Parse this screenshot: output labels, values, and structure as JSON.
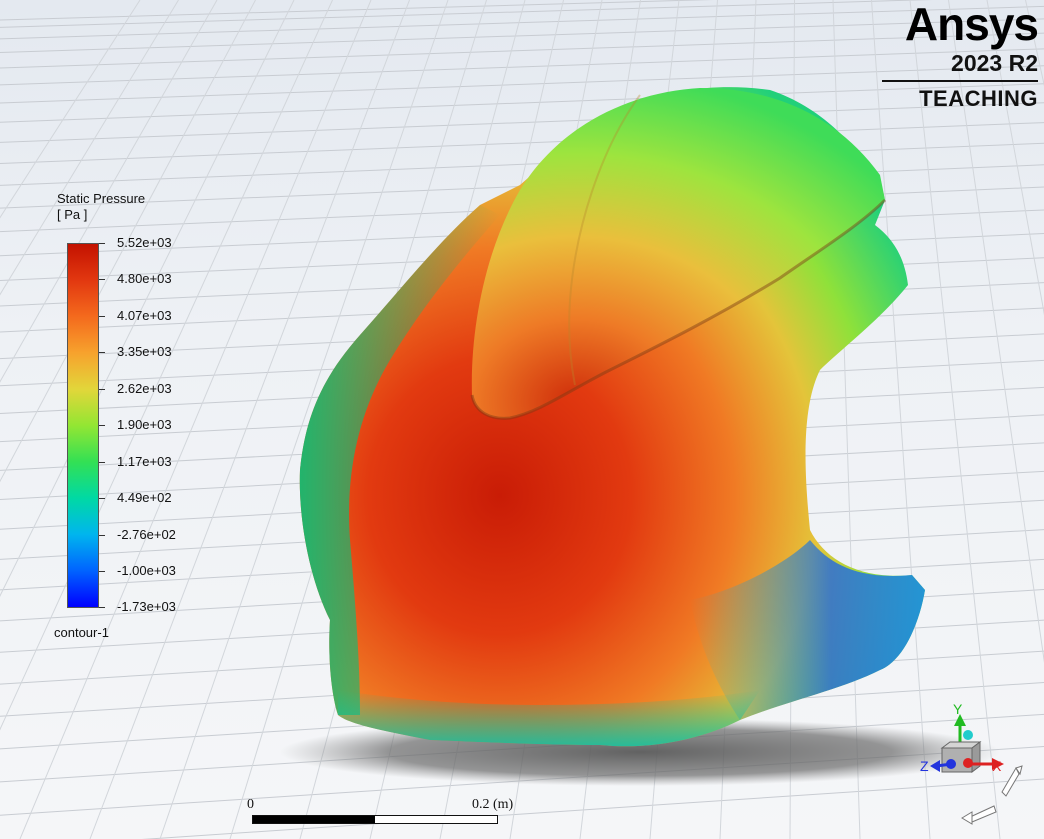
{
  "branding": {
    "logo": "Ansys",
    "version": "2023 R2",
    "edition": "TEACHING"
  },
  "legend": {
    "title": "Static Pressure",
    "units": "[ Pa ]",
    "labels": [
      "5.52e+03",
      "4.80e+03",
      "4.07e+03",
      "3.35e+03",
      "2.62e+03",
      "1.90e+03",
      "1.17e+03",
      "4.49e+02",
      "-2.76e+02",
      "-1.00e+03",
      "-1.73e+03"
    ],
    "colormap": [
      "#c31200",
      "#e23810",
      "#f46a1d",
      "#f7a22d",
      "#e2d63a",
      "#93e633",
      "#33e054",
      "#00d9a4",
      "#00b5ee",
      "#0063ff",
      "#0000ff"
    ],
    "contour_name": "contour-1"
  },
  "scale_bar": {
    "label_start": "0",
    "label_end": "0.2 (m)"
  },
  "triad": {
    "y_label": "Y",
    "z_label": "Z",
    "x_label": "X",
    "colors": {
      "y": "#22bb22",
      "x": "#dd2222",
      "z": "#2233dd",
      "center": "#22cccc"
    }
  }
}
